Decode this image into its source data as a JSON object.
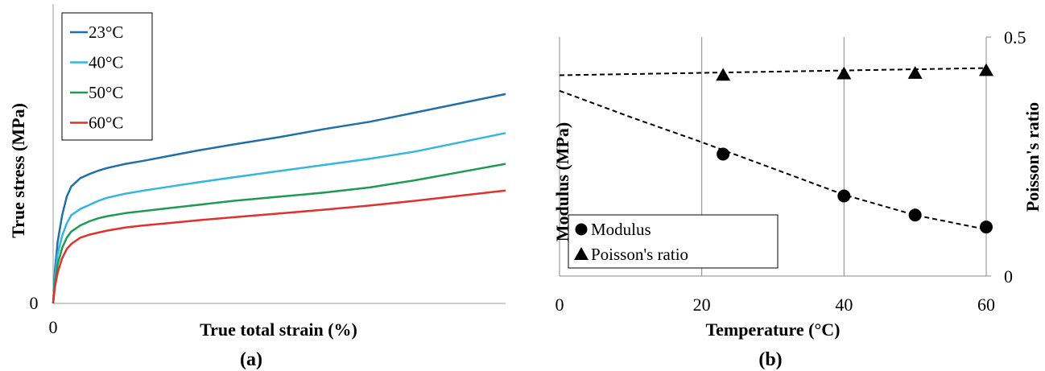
{
  "chart_data": [
    {
      "type": "line",
      "panel_label": "(a)",
      "xlabel": "True total strain (%)",
      "ylabel": "True stress (MPa)",
      "x_ticks": [
        "0"
      ],
      "y_ticks": [
        "0"
      ],
      "legend_position": "top-left",
      "x": [
        0,
        0.2,
        0.5,
        1,
        1.5,
        2,
        3,
        4,
        5,
        6,
        8,
        10,
        13,
        16,
        20,
        25,
        30,
        35,
        40,
        45,
        50
      ],
      "series": [
        {
          "name": "23°C",
          "color": "#1f6fa8",
          "values": [
            0,
            16,
            30,
            43,
            52,
            57,
            61,
            63,
            64.7,
            66,
            68,
            69.5,
            72,
            74.5,
            77.5,
            81,
            85,
            88.5,
            93,
            97.5,
            102
          ]
        },
        {
          "name": "40°C",
          "color": "#33b6e0",
          "values": [
            0,
            13,
            24,
            33,
            39,
            43,
            46,
            48,
            50,
            51.5,
            53.5,
            55,
            57,
            59,
            61.5,
            64.5,
            67.5,
            70.5,
            74,
            78.5,
            83
          ]
        },
        {
          "name": "50°C",
          "color": "#1e9a52",
          "values": [
            0,
            10,
            19,
            27,
            32,
            35,
            38,
            40,
            41.5,
            42.5,
            44,
            45,
            46.5,
            48,
            50,
            52,
            54,
            56.5,
            60,
            64,
            68
          ]
        },
        {
          "name": "60°C",
          "color": "#e0312e",
          "values": [
            0,
            8,
            15,
            22,
            26.5,
            29,
            32,
            33.5,
            34.5,
            35.5,
            37,
            38,
            39.2,
            40.5,
            42,
            43.8,
            45.7,
            47.7,
            50,
            52.5,
            55
          ]
        }
      ]
    },
    {
      "type": "scatter",
      "panel_label": "(b)",
      "xlabel": "Temperature (°C)",
      "ylabel": "Modulus (MPa)",
      "y2label": "Poisson's ratio",
      "xlim": [
        0,
        60
      ],
      "x_ticks": [
        "0",
        "20",
        "40",
        "60"
      ],
      "y2lim": [
        0,
        0.5
      ],
      "y2_ticks": [
        "0",
        "0.5"
      ],
      "grid": "vertical",
      "legend_position": "bottom-left",
      "modulus_scale": [
        0,
        1
      ],
      "series": [
        {
          "name": "Modulus",
          "marker": "circle",
          "axis": "left",
          "x": [
            23,
            40,
            50,
            60
          ],
          "values": [
            0.51,
            0.335,
            0.255,
            0.205
          ],
          "trend_x": [
            0,
            10,
            20,
            30,
            40,
            50,
            60
          ],
          "trend_y": [
            0.775,
            0.665,
            0.56,
            0.45,
            0.34,
            0.255,
            0.195
          ]
        },
        {
          "name": "Poisson's ratio",
          "marker": "triangle",
          "axis": "right",
          "x": [
            23,
            40,
            50,
            60
          ],
          "values": [
            0.42,
            0.423,
            0.424,
            0.43
          ],
          "trend_x": [
            0,
            60
          ],
          "trend_y": [
            0.42,
            0.435
          ]
        }
      ]
    }
  ]
}
